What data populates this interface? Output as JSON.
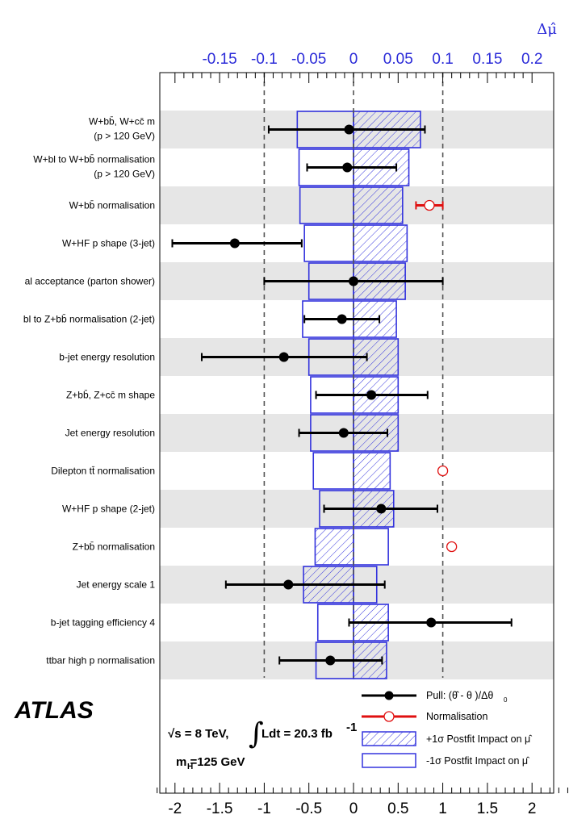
{
  "chart_data": {
    "type": "ranking",
    "title": "",
    "top_axis": {
      "label": "Δμ̂",
      "range": [
        -0.2,
        0.2
      ],
      "ticks": [
        "-0.15",
        "-0.1",
        "-0.05",
        "0",
        "0.05",
        "0.1",
        "0.15",
        "0.2"
      ],
      "tick_values": [
        -0.15,
        -0.1,
        -0.05,
        0,
        0.05,
        0.1,
        0.15,
        0.2
      ]
    },
    "bottom_axis": {
      "label": "",
      "range": [
        -2.2,
        2.4
      ],
      "ticks": [
        "-2",
        "-1.5",
        "-1",
        "-0.5",
        "0",
        "0.5",
        "1",
        "1.5",
        "2"
      ],
      "tick_values": [
        -2,
        -1.5,
        -1,
        -0.5,
        0,
        0.5,
        1,
        1.5,
        2
      ]
    },
    "dashed_lines_at": [
      -1,
      0,
      1
    ],
    "rows": [
      {
        "label": "W+bb̄, W+cc̄ m_jj shape (p_T^V > 120 GeV)",
        "label_lines": [
          "W+bb̄, W+cc̄ m",
          "(p   > 120 GeV)"
        ],
        "type": "pull",
        "pull": -0.05,
        "err_lo": 0.9,
        "err_hi": 0.85,
        "impact_up": 0.075,
        "impact_down": -0.063
      },
      {
        "label": "W+bl to W+bb̄ normalisation (p_T^V > 120 GeV)",
        "label_lines": [
          "W+bl to W+bb̄ normalisation",
          "(p   > 120 GeV)"
        ],
        "type": "pull",
        "pull": -0.07,
        "err_lo": 0.45,
        "err_hi": 0.55,
        "impact_up": 0.062,
        "impact_down": -0.061
      },
      {
        "label": "W+bb̄ normalisation",
        "label_lines": [
          "W+bb̄ normalisation"
        ],
        "type": "norm",
        "pull": 0.85,
        "err_lo": 0.15,
        "err_hi": 0.15,
        "impact_up": 0.055,
        "impact_down": -0.06
      },
      {
        "label": "W+HF p_T^V shape (3-jet)",
        "label_lines": [
          "W+HF p   shape (3-jet)"
        ],
        "type": "pull",
        "pull": -1.33,
        "err_lo": 0.7,
        "err_hi": 0.75,
        "impact_up": 0.06,
        "impact_down": -0.055
      },
      {
        "label": "al acceptance (parton shower)",
        "label_lines": [
          "al acceptance (parton shower)"
        ],
        "type": "pull",
        "pull": 0.0,
        "err_lo": 1.0,
        "err_hi": 1.0,
        "impact_up": 0.058,
        "impact_down": -0.05
      },
      {
        "label": "bl to Z+bb̄ normalisation (2-jet)",
        "label_lines": [
          "bl to Z+bb̄ normalisation (2-jet)"
        ],
        "type": "pull",
        "pull": -0.13,
        "err_lo": 0.42,
        "err_hi": 0.42,
        "impact_up": 0.048,
        "impact_down": -0.057
      },
      {
        "label": "b-jet energy resolution",
        "label_lines": [
          "b-jet energy resolution"
        ],
        "type": "pull",
        "pull": -0.78,
        "err_lo": 0.92,
        "err_hi": 0.93,
        "impact_up": 0.05,
        "impact_down": -0.05
      },
      {
        "label": "Z+bb̄, Z+cc̄ m_jj shape",
        "label_lines": [
          "Z+bb̄, Z+cc̄ m   shape"
        ],
        "type": "pull",
        "pull": 0.2,
        "err_lo": 0.62,
        "err_hi": 0.63,
        "impact_up": 0.05,
        "impact_down": -0.048
      },
      {
        "label": "Jet energy resolution",
        "label_lines": [
          "Jet energy resolution"
        ],
        "type": "pull",
        "pull": -0.11,
        "err_lo": 0.5,
        "err_hi": 0.49,
        "impact_up": 0.05,
        "impact_down": -0.048
      },
      {
        "label": "Dilepton tt̄ normalisation",
        "label_lines": [
          "Dilepton tt̄ normalisation"
        ],
        "type": "norm",
        "pull": 1.0,
        "err_lo": 0,
        "err_hi": 0,
        "impact_up": 0.041,
        "impact_down": -0.045
      },
      {
        "label": "W+HF p_T^V shape (2-jet)",
        "label_lines": [
          "W+HF p   shape (2-jet)"
        ],
        "type": "pull",
        "pull": 0.31,
        "err_lo": 0.64,
        "err_hi": 0.63,
        "impact_up": 0.045,
        "impact_down": -0.038
      },
      {
        "label": "Z+bb̄ normalisation",
        "label_lines": [
          "Z+bb̄ normalisation"
        ],
        "type": "norm",
        "pull": 1.1,
        "err_lo": 0,
        "err_hi": 0,
        "impact_up": -0.043,
        "impact_down": 0.039
      },
      {
        "label": "Jet energy scale 1",
        "label_lines": [
          "Jet energy scale 1"
        ],
        "type": "pull",
        "pull": -0.73,
        "err_lo": 0.7,
        "err_hi": 1.08,
        "impact_up": -0.056,
        "impact_down": 0.026
      },
      {
        "label": "b-jet tagging efficiency 4",
        "label_lines": [
          "b-jet tagging efficiency 4"
        ],
        "type": "pull",
        "pull": 0.87,
        "err_lo": 0.92,
        "err_hi": 0.9,
        "impact_up": 0.039,
        "impact_down": -0.04
      },
      {
        "label": "ttbar high p_T^V normalisation",
        "label_lines": [
          "ttbar high p   normalisation"
        ],
        "type": "pull",
        "pull": -0.26,
        "err_lo": 0.57,
        "err_hi": 0.58,
        "impact_up": 0.037,
        "impact_down": -0.042
      }
    ],
    "legend": {
      "placement": "bottom-right",
      "entries": [
        "Pull: (θ̂ - θ )/Δθ",
        "Normalisation",
        "+1σ Postfit Impact on μ̂",
        "-1σ Postfit Impact on μ̂"
      ]
    },
    "annotations": {
      "experiment": "ATLAS",
      "sqrt_s": "√s = 8 TeV,",
      "lumi": "Ldt = 20.3 fb",
      "lumi_exp": "-1",
      "mass": "m =125 GeV"
    },
    "colors": {
      "impact": "#3333dd",
      "norm": "#e01010",
      "pull": "#000000",
      "band": "#e6e6e6",
      "top_axis": "#2a2ad8"
    }
  }
}
